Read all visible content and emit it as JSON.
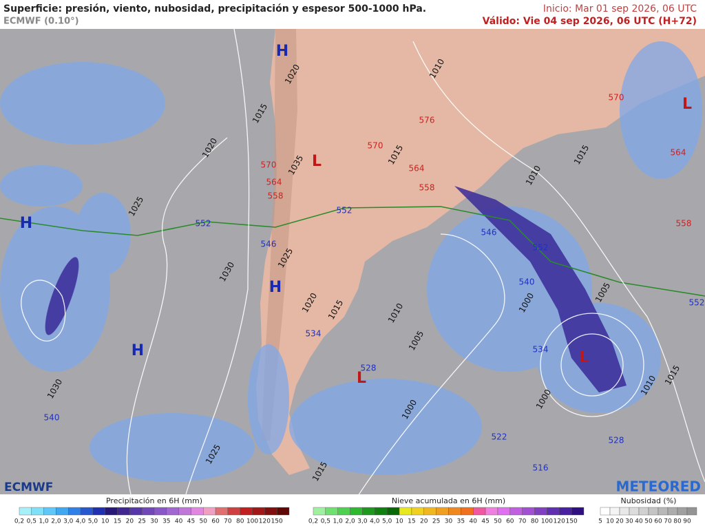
{
  "header": {
    "title": "Superficie: presión, viento, nubosidad, precipitación y espesor 500-1000 hPa.",
    "model": "ECMWF (0.10°)",
    "init": "Inicio: Mar 01 sep 2026, 06 UTC",
    "valid": "Válido: Vie 04 sep 2026, 06 UTC (H+72)"
  },
  "centers": [
    "H",
    "L",
    "L",
    "H",
    "H",
    "H",
    "L",
    "L"
  ],
  "isobars": [
    "1015",
    "1020",
    "1025",
    "1030",
    "1030",
    "1025",
    "1010",
    "1015",
    "1010",
    "1015",
    "1020",
    "1015",
    "1010",
    "1005",
    "1000",
    "1000",
    "1005",
    "1010",
    "1015",
    "1015",
    "1020",
    "1025",
    "1035",
    "1000"
  ],
  "thickness_warm": [
    "570",
    "576",
    "570",
    "564",
    "558",
    "564",
    "558",
    "570",
    "564",
    "558"
  ],
  "thickness_cold": [
    "552",
    "552",
    "546",
    "546",
    "552",
    "540",
    "534",
    "528",
    "534",
    "540",
    "522",
    "516",
    "528",
    "552"
  ],
  "logos": {
    "left": "ECMWF",
    "right": "METEORED"
  },
  "legends": [
    {
      "title": "Precipitación en 6H (mm)",
      "ticks": [
        "0,2",
        "0,5",
        "1,0",
        "2,0",
        "3,0",
        "4,0",
        "5,0",
        "10",
        "15",
        "20",
        "25",
        "30",
        "35",
        "40",
        "45",
        "50",
        "60",
        "70",
        "80",
        "100",
        "120",
        "150"
      ],
      "colors": [
        "#a8f0f8",
        "#80e0f8",
        "#60c8f8",
        "#40a8f0",
        "#3080e8",
        "#2858d0",
        "#2030b0",
        "#281878",
        "#402890",
        "#5838a8",
        "#7048b8",
        "#8858c8",
        "#a068d0",
        "#c078d8",
        "#e088e0",
        "#f0a0c0",
        "#e07070",
        "#d04040",
        "#c02020",
        "#a01818",
        "#801010",
        "#600808"
      ]
    },
    {
      "title": "Nieve acumulada en 6H (mm)",
      "ticks": [
        "0,2",
        "0,5",
        "1,0",
        "2,0",
        "3,0",
        "4,0",
        "5,0",
        "10",
        "15",
        "20",
        "25",
        "30",
        "35",
        "40",
        "45",
        "50",
        "60",
        "70",
        "80",
        "100",
        "120",
        "150"
      ],
      "colors": [
        "#a0f0a0",
        "#70e070",
        "#50d050",
        "#30b830",
        "#209820",
        "#108010",
        "#086808",
        "#e8e820",
        "#f0d020",
        "#f0b820",
        "#f0a020",
        "#f08820",
        "#f07020",
        "#f058a0",
        "#f080e0",
        "#e070f0",
        "#c060e0",
        "#a050d0",
        "#8040c0",
        "#6030b0",
        "#4820a0",
        "#301080"
      ]
    },
    {
      "title": "Nubosidad (%)",
      "ticks": [
        "5",
        "10",
        "20",
        "30",
        "40",
        "50",
        "60",
        "70",
        "80",
        "90"
      ],
      "colors": [
        "#ffffff",
        "#f4f4f4",
        "#e8e8e8",
        "#dcdcdc",
        "#d0d0d0",
        "#c4c4c4",
        "#b8b8b8",
        "#acacac",
        "#a0a0a0",
        "#949494"
      ]
    }
  ]
}
